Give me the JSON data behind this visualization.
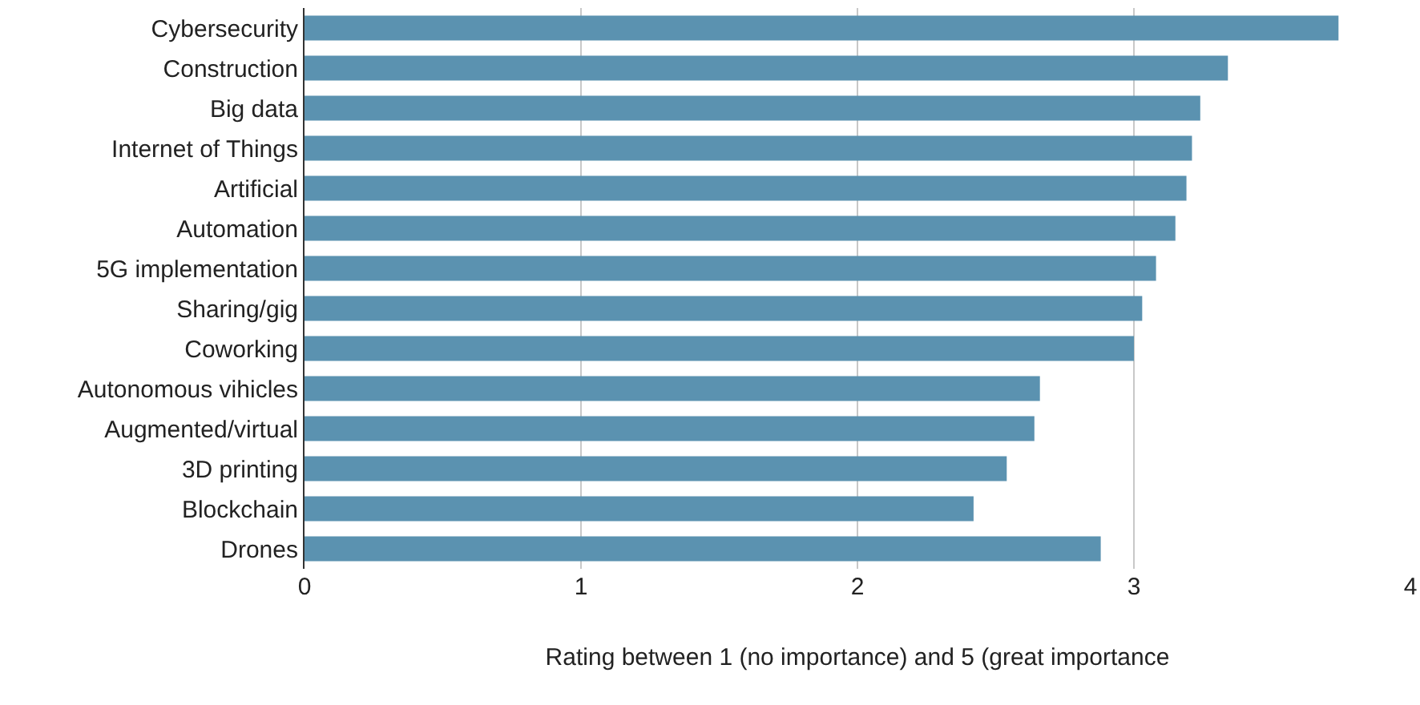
{
  "chart_data": {
    "type": "bar",
    "orientation": "horizontal",
    "xlabel": "Rating between 1 (no importance) and 5 (great importance",
    "categories": [
      "Cybersecurity",
      "Construction",
      "Big data",
      "Internet of Things",
      "Artificial",
      "Automation",
      "5G implementation",
      "Sharing/gig",
      "Coworking",
      "Autonomous vihicles",
      "Augmented/virtual",
      "3D printing",
      "Blockchain",
      "Drones"
    ],
    "values": [
      3.74,
      3.34,
      3.24,
      3.21,
      3.19,
      3.15,
      3.08,
      3.03,
      3.0,
      2.66,
      2.64,
      2.54,
      2.42,
      2.88
    ],
    "color": "#5b92b0",
    "xlim": [
      0,
      4
    ],
    "xticks": [
      0,
      1,
      2,
      3,
      4
    ],
    "grid": "x"
  }
}
